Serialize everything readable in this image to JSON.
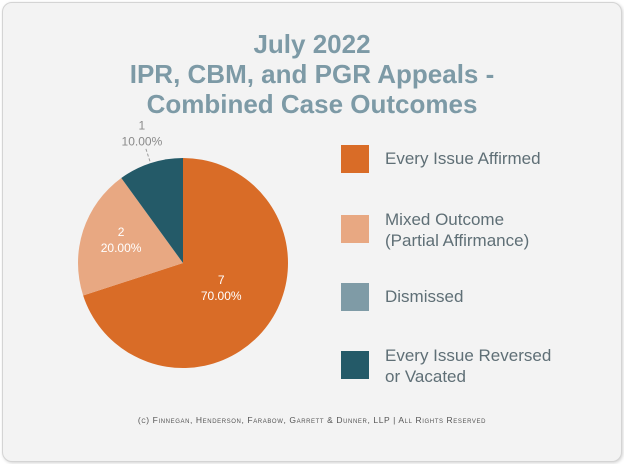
{
  "colors": {
    "every_issue_affirmed": "#d96c27",
    "mixed_outcome": "#e8a882",
    "dismissed": "#7f9ba6",
    "every_issue_reversed": "#245a68",
    "title": "#7d9aa6"
  },
  "chart_data": {
    "type": "pie",
    "title_lines": [
      "July 2022",
      "IPR, CBM, and PGR Appeals -",
      "Combined Case Outcomes"
    ],
    "slices": [
      {
        "name": "Every Issue Affirmed",
        "count": 7,
        "percent": 70.0,
        "count_label": "7",
        "percent_label": "70.00%",
        "color": "#d96c27"
      },
      {
        "name": "Mixed Outcome (Partial Affirmance)",
        "count": 2,
        "percent": 20.0,
        "count_label": "2",
        "percent_label": "20.00%",
        "color": "#e8a882"
      },
      {
        "name": "Dismissed",
        "count": 0,
        "percent": 0.0,
        "count_label": "",
        "percent_label": "",
        "color": "#7f9ba6"
      },
      {
        "name": "Every Issue Reversed or Vacated",
        "count": 1,
        "percent": 10.0,
        "count_label": "1",
        "percent_label": "10.00%",
        "color": "#245a68"
      }
    ],
    "legend": {
      "placement": "right",
      "items": [
        {
          "lines": [
            "Every Issue Affirmed"
          ],
          "color": "#d96c27"
        },
        {
          "lines": [
            "Mixed Outcome",
            "(Partial Affirmance)"
          ],
          "color": "#e8a882"
        },
        {
          "lines": [
            "Dismissed"
          ],
          "color": "#7f9ba6"
        },
        {
          "lines": [
            "Every Issue Reversed",
            "or Vacated"
          ],
          "color": "#245a68"
        }
      ]
    }
  },
  "footer": "(c) Finnegan, Henderson, Farabow, Garrett & Dunner, LLP | All Rights Reserved"
}
